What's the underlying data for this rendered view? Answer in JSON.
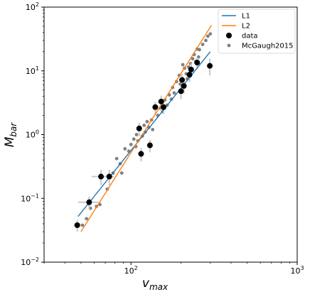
{
  "chart_data": {
    "type": "scatter",
    "title": "",
    "xlabel_main": "v",
    "xlabel_sub": "max",
    "ylabel_main": "M",
    "ylabel_sub": "bar",
    "xscale": "log",
    "yscale": "log",
    "xlim": [
      30,
      1000
    ],
    "ylim": [
      0.01,
      100
    ],
    "x_ticks": [
      {
        "value": 100,
        "base": "10",
        "exp": "2"
      },
      {
        "value": 1000,
        "base": "10",
        "exp": "3"
      }
    ],
    "y_ticks": [
      {
        "value": 0.01,
        "base": "10",
        "exp": "−2"
      },
      {
        "value": 0.1,
        "base": "10",
        "exp": "−1"
      },
      {
        "value": 1,
        "base": "10",
        "exp": "0"
      },
      {
        "value": 10,
        "base": "10",
        "exp": "1"
      },
      {
        "value": 100,
        "base": "10",
        "exp": "2"
      }
    ],
    "grid": false,
    "legend_position": "top-right",
    "colors": {
      "l1": "#1f77b4",
      "l2": "#ff7f0e",
      "data": "#000000",
      "mcgaugh": "#808080",
      "errorbar": "#c8c8c8"
    },
    "series": [
      {
        "name": "L1",
        "kind": "line",
        "x": [
          48,
          300
        ],
        "y": [
          0.052,
          20.0
        ]
      },
      {
        "name": "L2",
        "kind": "line",
        "x": [
          50,
          305
        ],
        "y": [
          0.03,
          52.0
        ]
      },
      {
        "name": "data",
        "kind": "errorbar-points",
        "points": [
          {
            "x": 47.5,
            "y": 0.038,
            "xerr": 2,
            "yerr": 0.008
          },
          {
            "x": 56,
            "y": 0.087,
            "xerr": 8,
            "yerr": 0.02
          },
          {
            "x": 66,
            "y": 0.22,
            "xerr": 8,
            "yerr": 0.06
          },
          {
            "x": 74,
            "y": 0.22,
            "xerr": 5,
            "yerr": 0.06
          },
          {
            "x": 112,
            "y": 1.25,
            "xerr": 3,
            "yerr": 0.3
          },
          {
            "x": 115,
            "y": 0.5,
            "xerr": 4,
            "yerr": 0.12
          },
          {
            "x": 130,
            "y": 0.68,
            "xerr": 5,
            "yerr": 0.15
          },
          {
            "x": 140,
            "y": 2.7,
            "xerr": 5,
            "yerr": 0.6
          },
          {
            "x": 152,
            "y": 3.3,
            "xerr": 6,
            "yerr": 0.8
          },
          {
            "x": 157,
            "y": 2.7,
            "xerr": 6,
            "yerr": 0.6
          },
          {
            "x": 200,
            "y": 4.8,
            "xerr": 6,
            "yerr": 1.2
          },
          {
            "x": 203,
            "y": 7.2,
            "xerr": 6,
            "yerr": 1.8
          },
          {
            "x": 208,
            "y": 5.8,
            "xerr": 6,
            "yerr": 1.4
          },
          {
            "x": 225,
            "y": 8.7,
            "xerr": 6,
            "yerr": 2.0
          },
          {
            "x": 230,
            "y": 10.5,
            "xerr": 6,
            "yerr": 2.6
          },
          {
            "x": 250,
            "y": 13.5,
            "xerr": 6,
            "yerr": 3.0
          },
          {
            "x": 298,
            "y": 12.0,
            "xerr": 6,
            "yerr": 3.5
          }
        ]
      },
      {
        "name": "McGaugh2015",
        "kind": "scatter",
        "points": [
          {
            "x": 51,
            "y": 0.038
          },
          {
            "x": 54,
            "y": 0.048
          },
          {
            "x": 57,
            "y": 0.07
          },
          {
            "x": 62,
            "y": 0.075
          },
          {
            "x": 65,
            "y": 0.08
          },
          {
            "x": 72,
            "y": 0.14
          },
          {
            "x": 78,
            "y": 0.25
          },
          {
            "x": 82,
            "y": 0.42
          },
          {
            "x": 86,
            "y": 0.35
          },
          {
            "x": 88,
            "y": 0.25
          },
          {
            "x": 92,
            "y": 0.6
          },
          {
            "x": 97,
            "y": 0.55
          },
          {
            "x": 100,
            "y": 0.7
          },
          {
            "x": 104,
            "y": 0.85
          },
          {
            "x": 107,
            "y": 0.65
          },
          {
            "x": 108,
            "y": 1.0
          },
          {
            "x": 110,
            "y": 0.8
          },
          {
            "x": 113,
            "y": 1.3
          },
          {
            "x": 117,
            "y": 0.95
          },
          {
            "x": 120,
            "y": 1.4
          },
          {
            "x": 122,
            "y": 1.1
          },
          {
            "x": 125,
            "y": 1.6
          },
          {
            "x": 128,
            "y": 1.3
          },
          {
            "x": 133,
            "y": 1.7
          },
          {
            "x": 135,
            "y": 1.2
          },
          {
            "x": 145,
            "y": 2.0
          },
          {
            "x": 150,
            "y": 2.6
          },
          {
            "x": 155,
            "y": 2.3
          },
          {
            "x": 160,
            "y": 3.5
          },
          {
            "x": 165,
            "y": 2.9
          },
          {
            "x": 170,
            "y": 4.2
          },
          {
            "x": 175,
            "y": 3.6
          },
          {
            "x": 178,
            "y": 5.5
          },
          {
            "x": 182,
            "y": 4.5
          },
          {
            "x": 188,
            "y": 6.8
          },
          {
            "x": 195,
            "y": 8.5
          },
          {
            "x": 198,
            "y": 6.2
          },
          {
            "x": 205,
            "y": 12.5
          },
          {
            "x": 210,
            "y": 11.0
          },
          {
            "x": 215,
            "y": 9.0
          },
          {
            "x": 218,
            "y": 7.5
          },
          {
            "x": 222,
            "y": 11.5
          },
          {
            "x": 228,
            "y": 13.0
          },
          {
            "x": 235,
            "y": 15.5
          },
          {
            "x": 240,
            "y": 18.0
          },
          {
            "x": 245,
            "y": 14.0
          },
          {
            "x": 250,
            "y": 22.0
          },
          {
            "x": 255,
            "y": 16.5
          },
          {
            "x": 258,
            "y": 21.5
          },
          {
            "x": 270,
            "y": 26.0
          },
          {
            "x": 282,
            "y": 30.0
          },
          {
            "x": 290,
            "y": 35.0
          },
          {
            "x": 300,
            "y": 38.0
          }
        ]
      }
    ]
  }
}
